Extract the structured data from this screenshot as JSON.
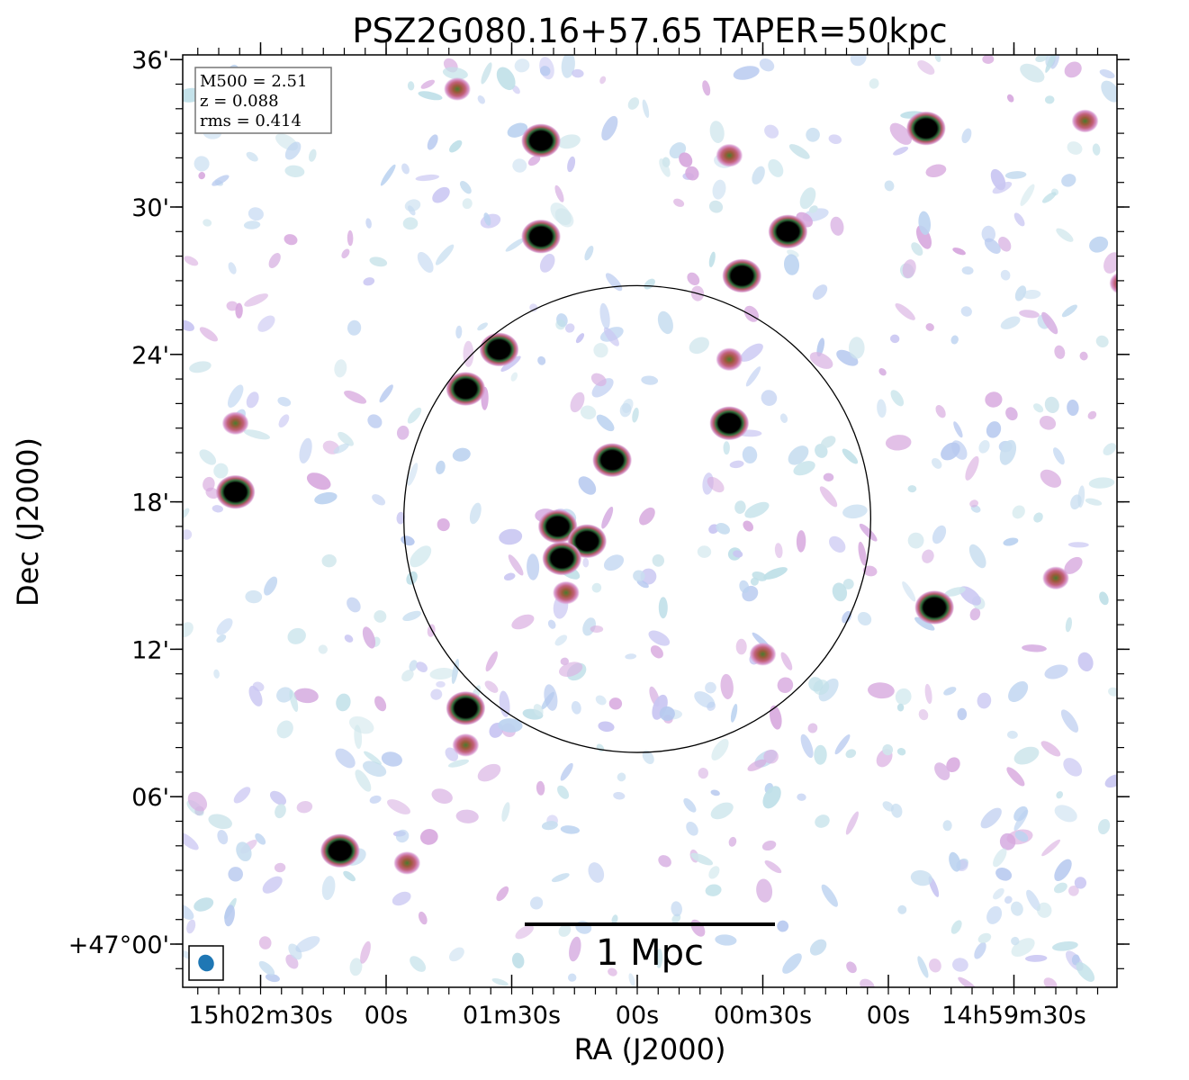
{
  "title": "PSZ2G080.16+57.65 TAPER=50kpc",
  "axes": {
    "xlabel": "RA (J2000)",
    "ylabel": "Dec (J2000)",
    "x_ticks": [
      {
        "label": "15h02m30s",
        "ra_sec": 150
      },
      {
        "label": "00s",
        "ra_sec": 120
      },
      {
        "label": "01m30s",
        "ra_sec": 90
      },
      {
        "label": "00s",
        "ra_sec": 60
      },
      {
        "label": "00m30s",
        "ra_sec": 30
      },
      {
        "label": "00s",
        "ra_sec": 0
      },
      {
        "label": "14h59m30s",
        "ra_sec": -30
      }
    ],
    "y_ticks": [
      {
        "label": "36'",
        "arcmin": 36
      },
      {
        "label": "30'",
        "arcmin": 30
      },
      {
        "label": "24'",
        "arcmin": 24
      },
      {
        "label": "18'",
        "arcmin": 18
      },
      {
        "label": "12'",
        "arcmin": 12
      },
      {
        "label": "06'",
        "arcmin": 6
      },
      {
        "label": "+47°00'",
        "arcmin": 0
      }
    ]
  },
  "info_box": {
    "line1": "M500 = 2.51",
    "line2": "z = 0.088",
    "line3": "rms = 0.414"
  },
  "scale_bar": {
    "label": "1 Mpc"
  },
  "circle": {
    "center_ra_sec": 60,
    "center_arcmin": 17.3,
    "radius_arcmin": 9.5
  },
  "colors": {
    "beam": "#1f77b4",
    "source_core": "#000000",
    "ring_green": "#3a7a3a"
  },
  "sources": [
    {
      "ra_sec": 103,
      "arcmin": 34.8,
      "kind": "red"
    },
    {
      "ra_sec": 83,
      "arcmin": 32.7,
      "kind": "bright"
    },
    {
      "ra_sec": 83,
      "arcmin": 28.8,
      "kind": "bright"
    },
    {
      "ra_sec": -9,
      "arcmin": 33.2,
      "kind": "bright"
    },
    {
      "ra_sec": 24,
      "arcmin": 29.0,
      "kind": "bright"
    },
    {
      "ra_sec": 35,
      "arcmin": 27.2,
      "kind": "bright"
    },
    {
      "ra_sec": 93,
      "arcmin": 24.2,
      "kind": "bright"
    },
    {
      "ra_sec": 101,
      "arcmin": 22.6,
      "kind": "bright"
    },
    {
      "ra_sec": 66,
      "arcmin": 19.7,
      "kind": "bright"
    },
    {
      "ra_sec": 38,
      "arcmin": 21.2,
      "kind": "bright"
    },
    {
      "ra_sec": 156,
      "arcmin": 18.4,
      "kind": "bright"
    },
    {
      "ra_sec": 79,
      "arcmin": 17.0,
      "kind": "bright"
    },
    {
      "ra_sec": 72,
      "arcmin": 16.4,
      "kind": "bright"
    },
    {
      "ra_sec": 78,
      "arcmin": 15.7,
      "kind": "bright"
    },
    {
      "ra_sec": 77,
      "arcmin": 14.3,
      "kind": "red"
    },
    {
      "ra_sec": 101,
      "arcmin": 9.6,
      "kind": "bright"
    },
    {
      "ra_sec": -11,
      "arcmin": 13.7,
      "kind": "bright"
    },
    {
      "ra_sec": 131,
      "arcmin": 3.8,
      "kind": "bright"
    },
    {
      "ra_sec": 115,
      "arcmin": 3.3,
      "kind": "red"
    },
    {
      "ra_sec": 30,
      "arcmin": 11.8,
      "kind": "red"
    },
    {
      "ra_sec": -40,
      "arcmin": 14.9,
      "kind": "red"
    },
    {
      "ra_sec": 38,
      "arcmin": 23.8,
      "kind": "red"
    },
    {
      "ra_sec": 156,
      "arcmin": 21.2,
      "kind": "red"
    },
    {
      "ra_sec": -56,
      "arcmin": 26.9,
      "kind": "red"
    },
    {
      "ra_sec": -47,
      "arcmin": 33.5,
      "kind": "red"
    },
    {
      "ra_sec": 101,
      "arcmin": 8.1,
      "kind": "red"
    },
    {
      "ra_sec": 38,
      "arcmin": 32.1,
      "kind": "red"
    }
  ]
}
